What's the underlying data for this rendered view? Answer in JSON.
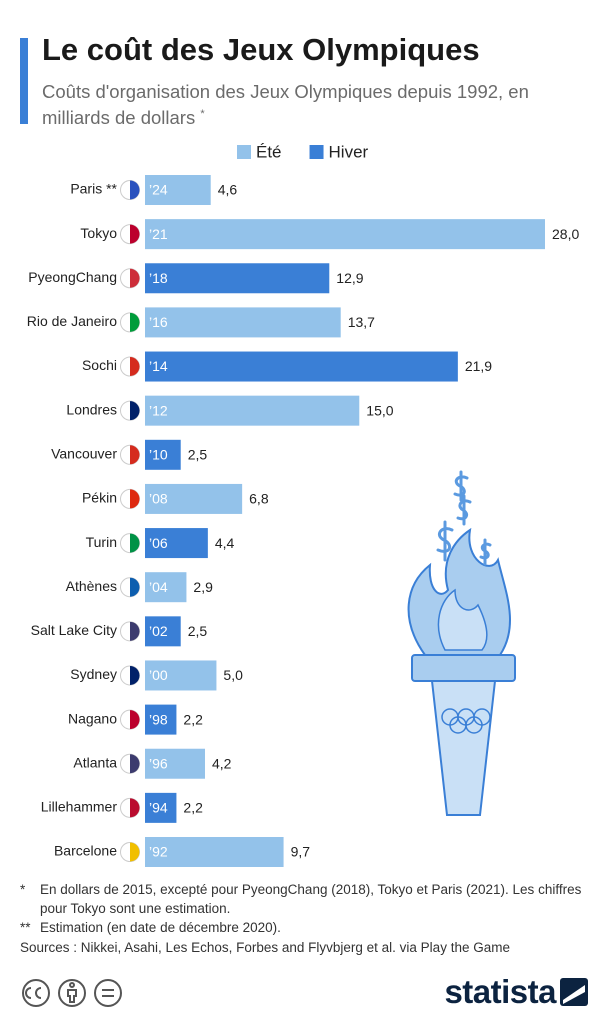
{
  "chart_data": {
    "type": "bar",
    "orientation": "horizontal",
    "title": "Le coût des Jeux Olympiques",
    "subtitle": "Coûts d'organisation des Jeux Olympiques depuis 1992, en milliards de dollars",
    "subtitle_mark": "*",
    "categories": [
      "Paris **",
      "Tokyo",
      "PyeongChang",
      "Rio de Janeiro",
      "Sochi",
      "Londres",
      "Vancouver",
      "Pékin",
      "Turin",
      "Athènes",
      "Salt Lake City",
      "Sydney",
      "Nagano",
      "Atlanta",
      "Lillehammer",
      "Barcelone"
    ],
    "bar_labels": [
      "’24",
      "’21",
      "’18",
      "’16",
      "’14",
      "’12",
      "’10",
      "’08",
      "’06",
      "’04",
      "’02",
      "’00",
      "’98",
      "’96",
      "’94",
      "’92"
    ],
    "series": [
      {
        "name": "Été",
        "color": "#93c2ea",
        "values": [
          4.6,
          28.0,
          null,
          13.7,
          null,
          15.0,
          null,
          6.8,
          null,
          2.9,
          null,
          5.0,
          null,
          4.2,
          null,
          9.7
        ],
        "value_labels": [
          "4,6",
          "28,0",
          null,
          "13,7",
          null,
          "15,0",
          null,
          "6,8",
          null,
          "2,9",
          null,
          "5,0",
          null,
          "4,2",
          null,
          "9,7"
        ]
      },
      {
        "name": "Hiver",
        "color": "#3a7fd6",
        "values": [
          null,
          null,
          12.9,
          null,
          21.9,
          null,
          2.5,
          null,
          4.4,
          null,
          2.5,
          null,
          2.2,
          null,
          2.2,
          null
        ],
        "value_labels": [
          null,
          null,
          "12,9",
          null,
          "21,9",
          null,
          "2,5",
          null,
          "4,4",
          null,
          "2,5",
          null,
          "2,2",
          null,
          "2,2",
          null
        ]
      }
    ],
    "notes": [
      {
        "mark": "*",
        "text": "En dollars de 2015, excepté pour PyeongChang (2018), Tokyo et Paris (2021). Les chiffres pour Tokyo sont une estimation."
      },
      {
        "mark": "**",
        "text": "Estimation (en date de décembre 2020)."
      }
    ],
    "source": "Sources : Nikkei, Asahi, Les Echos, Forbes and Flyvbjerg et al. via Play the Game",
    "brand": "statista"
  }
}
